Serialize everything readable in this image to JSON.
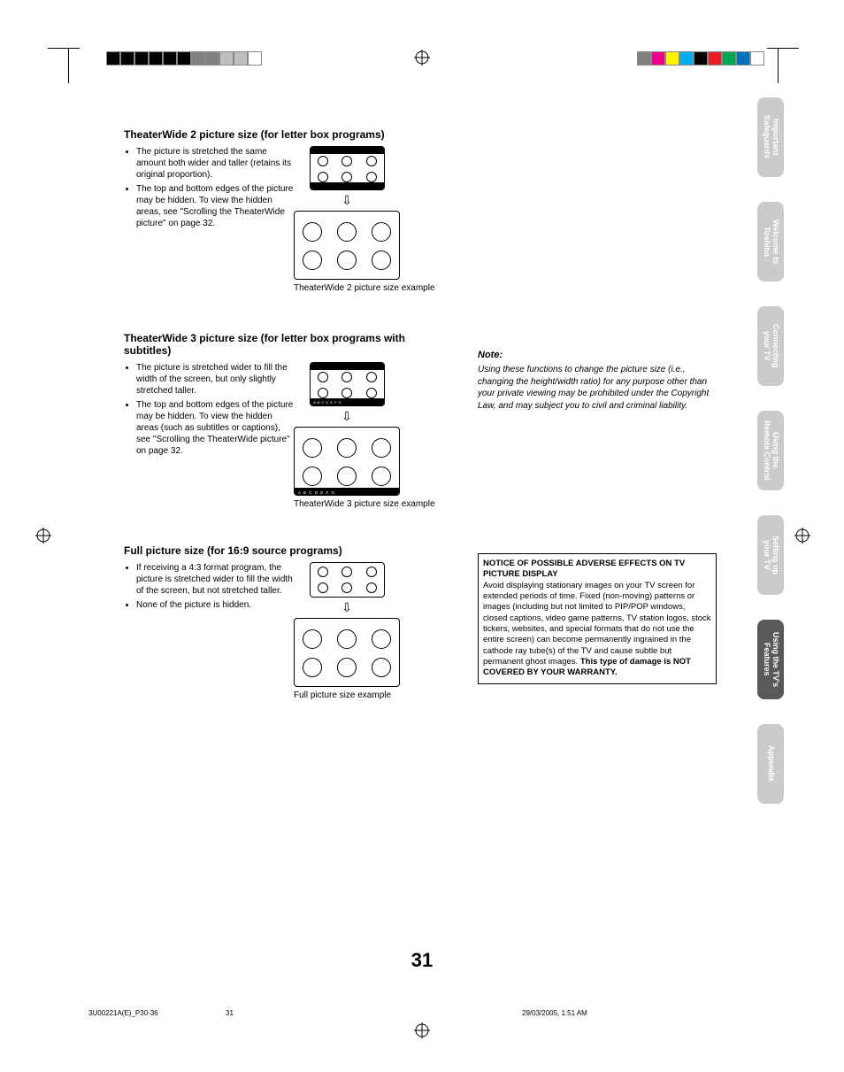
{
  "sections": {
    "tw2": {
      "heading": "TheaterWide 2 picture size (for letter box programs)",
      "bullets": [
        "The picture is stretched the same amount both wider and taller (retains its original proportion).",
        "The top and bottom edges of the picture may be hidden. To view the hidden areas, see \"Scrolling the TheaterWide picture\" on page 32."
      ],
      "caption": "TheaterWide 2 picture size example"
    },
    "tw3": {
      "heading": "TheaterWide 3 picture size (for letter box programs with subtitles)",
      "bullets": [
        "The picture is stretched wider to fill the width of the screen, but only slightly stretched taller.",
        "The top and bottom edges of the picture may be hidden. To view the hidden areas (such as subtitles or captions), see \"Scrolling the TheaterWide picture\" on page 32."
      ],
      "caption": "TheaterWide 3 picture size example",
      "subtitle_text": "A B C D E F G"
    },
    "full": {
      "heading": "Full picture size (for 16:9 source programs)",
      "bullets": [
        "If receiving a 4:3 format program, the picture is stretched wider to fill the width of the screen, but not stretched taller.",
        "None of the picture is hidden."
      ],
      "caption": "Full picture size example"
    }
  },
  "note": {
    "heading": "Note:",
    "body": "Using these functions to change the picture size (i.e., changing the height/width ratio) for any purpose other than your private viewing may be prohibited under the Copyright Law, and may subject you to civil and criminal liability."
  },
  "notice": {
    "title": "NOTICE OF POSSIBLE ADVERSE EFFECTS ON TV PICTURE DISPLAY",
    "body": "Avoid displaying stationary images on your TV screen for extended periods of time. Fixed (non-moving) patterns or images (including but not limited to PIP/POP windows, closed captions, video game patterns, TV station logos, stock tickers, websites, and special formats that do not use the entire screen) can become permanently ingrained in the cathode ray tube(s) of the TV and cause subtle but permanent ghost images. ",
    "bold_tail": "This type of damage is NOT COVERED BY YOUR WARRANTY."
  },
  "tabs": [
    {
      "l1": "Important",
      "l2": "Safeguards",
      "active": false
    },
    {
      "l1": "Welcome to",
      "l2": "Toshiba",
      "active": false
    },
    {
      "l1": "Connecting",
      "l2": "your TV",
      "active": false
    },
    {
      "l1": "Using the",
      "l2": "Remote Control",
      "active": false
    },
    {
      "l1": "Setting up",
      "l2": "your TV",
      "active": false
    },
    {
      "l1": "Using the TV's",
      "l2": "Features",
      "active": true
    },
    {
      "l1": "Appendix",
      "l2": "",
      "active": false
    }
  ],
  "page_number": "31",
  "footer": {
    "file": "3U00221A(E)_P30-36",
    "page": "31",
    "date": "29/03/2005, 1:51 AM"
  },
  "colorbar_left": [
    "#000000",
    "#000000",
    "#000000",
    "#000000",
    "#000000",
    "#000000",
    "#808080",
    "#808080",
    "#c0c0c0",
    "#c0c0c0",
    "#ffffff"
  ],
  "colorbar_right": [
    "#808080",
    "#ec008c",
    "#fff200",
    "#00aeef",
    "#000000",
    "#ed1c24",
    "#00a651",
    "#0072bc",
    "#ffffff"
  ],
  "arrow_glyph": "⇩"
}
